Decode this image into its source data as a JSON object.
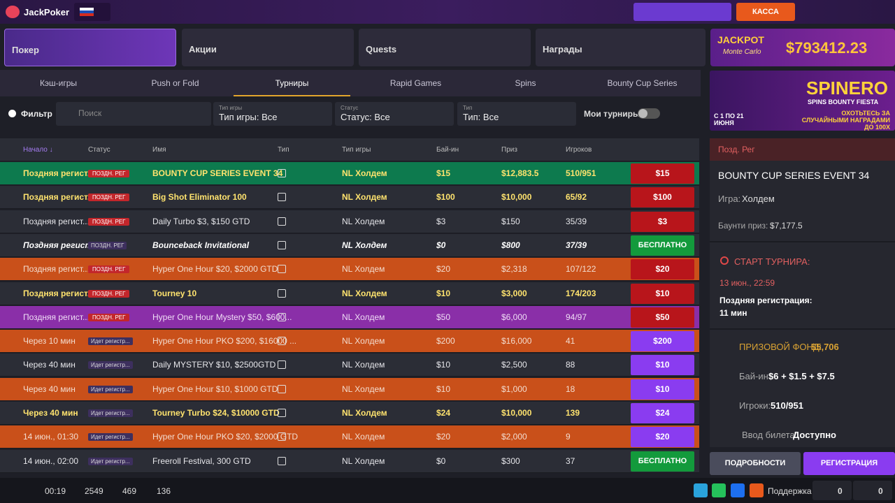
{
  "header": {
    "logo": "JackPoker",
    "cashier": "КАССА"
  },
  "nav_tabs": [
    "Покер",
    "Акции",
    "Quests",
    "Награды"
  ],
  "jackpot": {
    "title": "JACKPOT",
    "subtitle": "Monte Carlo",
    "amount": "$793412.23"
  },
  "game_tabs": [
    "Кэш-игры",
    "Push or Fold",
    "Турниры",
    "Rapid Games",
    "Spins",
    "Bounty Cup Series"
  ],
  "filters": {
    "filter": "Фильтр",
    "search": "Поиск",
    "game_type_label": "Тип игры",
    "game_type": "Тип игры: Все",
    "status_label": "Статус",
    "status": "Статус: Все",
    "type_label": "Тип",
    "type": "Тип: Все",
    "my": "Мои турниры"
  },
  "table": {
    "headers": [
      "Начало ↓",
      "Статус",
      "Имя",
      "Тип",
      "Тип игры",
      "Бай-ин",
      "Приз",
      "Игроков"
    ],
    "rows": [
      {
        "start": "Поздняя регист...",
        "status": "ПОЗДН. РЕГ",
        "name": "BOUNTY CUP SERIES EVENT 34",
        "game": "NL Холдем",
        "buyin": "$15",
        "prize": "$12,883.5",
        "players": "510/951",
        "button": "$15",
        "color": "#0d7a4e",
        "text_color": "#ffe36e",
        "button_color": "#b8151b"
      },
      {
        "start": "Поздняя регист...",
        "status": "ПОЗДН. РЕГ",
        "name": "Big Shot Eliminator 100",
        "game": "NL Холдем",
        "buyin": "$100",
        "prize": "$10,000",
        "players": "65/92",
        "button": "$100",
        "color": "#2b2d36",
        "text_color": "#ffe36e",
        "button_color": "#b8151b"
      },
      {
        "start": "Поздняя регист...",
        "status": "ПОЗДН. РЕГ",
        "name": "Daily Turbo $3, $150 GTD",
        "game": "NL Холдем",
        "buyin": "$3",
        "prize": "$150",
        "players": "35/39",
        "button": "$3",
        "color": "#2b2d36",
        "text_color": "#e6e6ea",
        "button_color": "#b8151b"
      },
      {
        "start": "Поздняя регист...",
        "status": "ПОЗДН. РЕГ",
        "name": "Bounceback Invitational",
        "game": "NL Холдем",
        "buyin": "$0",
        "prize": "$800",
        "players": "37/39",
        "button": "БЕСПЛАТНО",
        "color": "#2b2d36",
        "text_color": "#ffffff",
        "button_color": "#139a3c"
      },
      {
        "start": "Поздняя регист...",
        "status": "ПОЗДН. РЕГ",
        "name": "Hyper One Hour $20, $2000 GTD",
        "game": "NL Холдем",
        "buyin": "$20",
        "prize": "$2,318",
        "players": "107/122",
        "button": "$20",
        "color": "#c9501a",
        "text_color": "#f3dccf",
        "button_color": "#b8151b"
      },
      {
        "start": "Поздняя регист...",
        "status": "ПОЗДН. РЕГ",
        "name": "Tourney 10",
        "game": "NL Холдем",
        "buyin": "$10",
        "prize": "$3,000",
        "players": "174/203",
        "button": "$10",
        "color": "#2b2d36",
        "text_color": "#ffe36e",
        "button_color": "#b8151b"
      },
      {
        "start": "Поздняя регист...",
        "status": "ПОЗДН. РЕГ",
        "name": "Hyper One Hour Mystery $50, $600...",
        "game": "NL Холдем",
        "buyin": "$50",
        "prize": "$6,000",
        "players": "94/97",
        "button": "$50",
        "color": "#8a2fa8",
        "text_color": "#efdcf5",
        "button_color": "#b8151b"
      },
      {
        "start": "Через 10 мин",
        "status": "Идет регистр...",
        "name": "Hyper One Hour PKO $200, $16000 ...",
        "game": "NL Холдем",
        "buyin": "$200",
        "prize": "$16,000",
        "players": "41",
        "button": "$200",
        "color": "#c9501a",
        "text_color": "#f3dccf",
        "button_color": "#8a3cf0"
      },
      {
        "start": "Через 40 мин",
        "status": "Идет регистр...",
        "name": "Daily MYSTERY $10, $2500GTD",
        "game": "NL Холдем",
        "buyin": "$10",
        "prize": "$2,500",
        "players": "88",
        "button": "$10",
        "color": "#2b2d36",
        "text_color": "#e6e6ea",
        "button_color": "#8a3cf0"
      },
      {
        "start": "Через 40 мин",
        "status": "Идет регистр...",
        "name": "Hyper One Hour $10, $1000 GTD",
        "game": "NL Холдем",
        "buyin": "$10",
        "prize": "$1,000",
        "players": "18",
        "button": "$10",
        "color": "#c9501a",
        "text_color": "#f3dccf",
        "button_color": "#8a3cf0"
      },
      {
        "start": "Через 40 мин",
        "status": "Идет регистр...",
        "name": "Tourney Turbo $24, $10000 GTD",
        "game": "NL Холдем",
        "buyin": "$24",
        "prize": "$10,000",
        "players": "139",
        "button": "$24",
        "color": "#2b2d36",
        "text_color": "#ffe36e",
        "button_color": "#8a3cf0"
      },
      {
        "start": "14 июн., 01:30",
        "status": "Идет регистр...",
        "name": "Hyper One Hour PKO $20, $2000 GTD",
        "game": "NL Холдем",
        "buyin": "$20",
        "prize": "$2,000",
        "players": "9",
        "button": "$20",
        "color": "#c9501a",
        "text_color": "#f3dccf",
        "button_color": "#8a3cf0"
      },
      {
        "start": "14 июн., 02:00",
        "status": "Идет регистр...",
        "name": "Freeroll Festival, 300 GTD",
        "game": "NL Холдем",
        "buyin": "$0",
        "prize": "$300",
        "players": "37",
        "button": "БЕСПЛАТНО",
        "color": "#2b2d36",
        "text_color": "#e6e6ea",
        "button_color": "#139a3c"
      }
    ]
  },
  "promo": {
    "title": "SPINERO",
    "subtitle": "SPINS BOUNTY FIESTA",
    "dates": "С 1 ПО 21 ИЮНЯ",
    "text": "ОХОТЬТЕСЬ ЗА СЛУЧАЙНЫМИ НАГРАДАМИ ДО 100X"
  },
  "details": {
    "status": "Позд. Рег",
    "title": "BOUNTY CUP SERIES EVENT 34",
    "game_label": "Игра:",
    "game": "Холдем",
    "bounty_label": "Баунти приз:",
    "bounty": "$7,177.5",
    "start_title": "СТАРТ ТУРНИРА:",
    "start_date": "13 июн., 22:59",
    "late_label": "Поздняя регистрация:",
    "late": "11 мин",
    "prize_label": "ПРИЗОВОЙ ФОНД:",
    "prize": "$5,706",
    "buyin_label": "Бай-ин:",
    "buyin": "$6 + $1.5 + $7.5",
    "players_label": "Игроки:",
    "players": "510/951",
    "ticket_label": "Ввод билета:",
    "ticket": "Доступно",
    "more": "ПОДРОБНОСТИ",
    "register": "РЕГИСТРАЦИЯ"
  },
  "footer": {
    "time": "00:19",
    "users": "2549",
    "tables": "469",
    "tournaments": "136",
    "support": "Поддержка",
    "count1": "0",
    "count2": "0"
  }
}
